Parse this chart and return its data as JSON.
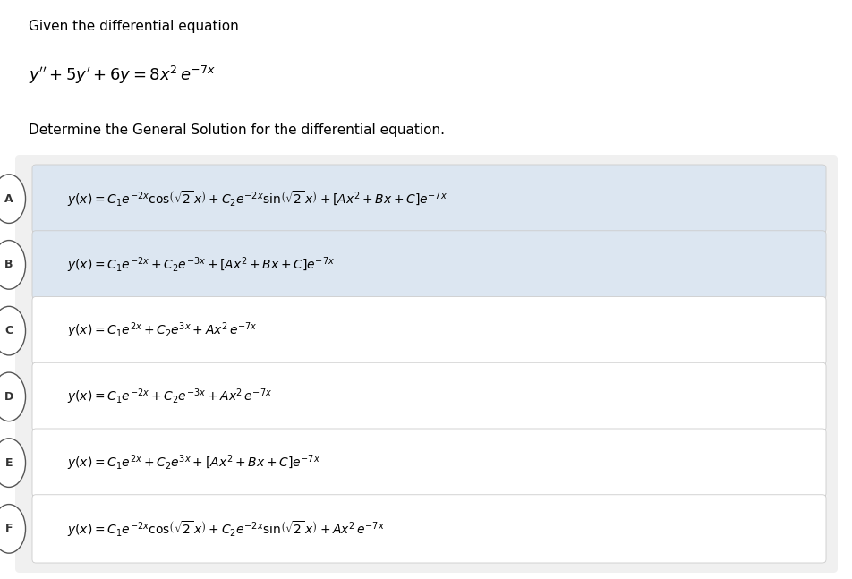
{
  "background_color": "#ffffff",
  "header_bg": "#ffffff",
  "options_panel_bg": "#f0f0f0",
  "option_bg_highlighted": "#dce6f1",
  "option_bg_normal": "#ffffff",
  "text_color": "#000000",
  "circle_edge_color": "#555555",
  "box_edge_color": "#cccccc",
  "title1": "Given the differential equation",
  "title2": "Determine the General Solution for the differential equation.",
  "main_eq": "y'' + 5y' + 6y = 8x^2\\, e^{-7x}",
  "labels": [
    "A",
    "B",
    "C",
    "D",
    "E",
    "F"
  ],
  "highlighted": [
    true,
    true,
    false,
    false,
    false,
    false
  ],
  "option_formulas": [
    "y(x) = C_1 e^{-2x} \\cos\\!\\left(\\sqrt{2}\\, x\\right) + C_2 e^{-2x} \\sin\\!\\left(\\sqrt{2}\\, x\\right) + \\left[Ax^2 + Bx + C\\right] e^{-7x}",
    "y(x) = C_1 e^{-2x} + C_2 e^{-3x} + \\left[Ax^2 + Bx + C\\right] e^{-7x}",
    "y(x) = C_1 e^{2x} + C_2 e^{3x} + Ax^2\\, e^{-7x}",
    "y(x) = C_1 e^{-2x} + C_2 e^{-3x} + Ax^2\\, e^{-7x}",
    "y(x) = C_1 e^{2x} + C_2 e^{3x} + \\left[Ax^2 + Bx + C\\right] e^{-7x}",
    "y(x) = C_1 e^{-2x} \\cos\\!\\left(\\sqrt{2}\\, x\\right) + C_2 e^{-2x} \\sin\\!\\left(\\sqrt{2}\\, x\\right) + Ax^2\\, e^{-7x}"
  ],
  "fig_width": 9.53,
  "fig_height": 6.47,
  "dpi": 100
}
